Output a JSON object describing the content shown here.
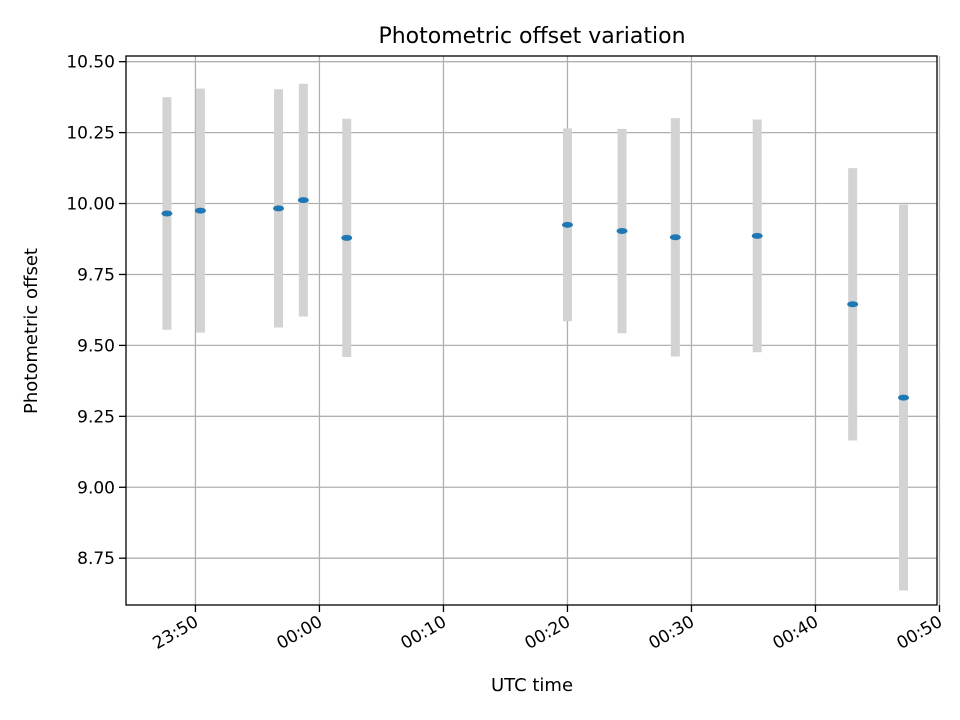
{
  "chart_data": {
    "type": "scatter",
    "title": "Photometric offset variation",
    "xlabel": "UTC time",
    "ylabel": "Photometric offset",
    "xlim_minutes": [
      -15.6,
      49.8
    ],
    "ylim": [
      8.585,
      10.52
    ],
    "grid": true,
    "x_ticks": [
      {
        "minutes": -10,
        "label": "23:50"
      },
      {
        "minutes": 0,
        "label": "00:00"
      },
      {
        "minutes": 10,
        "label": "00:10"
      },
      {
        "minutes": 20,
        "label": "00:20"
      },
      {
        "minutes": 30,
        "label": "00:30"
      },
      {
        "minutes": 40,
        "label": "00:40"
      },
      {
        "minutes": 50,
        "label": "00:50"
      }
    ],
    "y_ticks": [
      {
        "value": 10.5,
        "label": "10.50"
      },
      {
        "value": 10.25,
        "label": "10.25"
      },
      {
        "value": 10.0,
        "label": "10.00"
      },
      {
        "value": 9.75,
        "label": "9.75"
      },
      {
        "value": 9.5,
        "label": "9.50"
      },
      {
        "value": 9.25,
        "label": "9.25"
      },
      {
        "value": 9.0,
        "label": "9.00"
      },
      {
        "value": 8.75,
        "label": "8.75"
      }
    ],
    "series": [
      {
        "name": "Photometric offset",
        "color": "#1f77b4",
        "errorbar_color": "#d3d3d3",
        "points": [
          {
            "t": -12.3,
            "y": 9.965,
            "err": 0.41
          },
          {
            "t": -9.6,
            "y": 9.975,
            "err": 0.43
          },
          {
            "t": -3.3,
            "y": 9.983,
            "err": 0.42
          },
          {
            "t": -1.3,
            "y": 10.012,
            "err": 0.41
          },
          {
            "t": 2.2,
            "y": 9.879,
            "err": 0.42
          },
          {
            "t": 20.0,
            "y": 9.925,
            "err": 0.34
          },
          {
            "t": 24.4,
            "y": 9.903,
            "err": 0.36
          },
          {
            "t": 28.7,
            "y": 9.881,
            "err": 0.42
          },
          {
            "t": 35.3,
            "y": 9.886,
            "err": 0.41
          },
          {
            "t": 43.0,
            "y": 9.645,
            "err": 0.48
          },
          {
            "t": 47.1,
            "y": 9.316,
            "err": 0.68
          }
        ]
      }
    ]
  }
}
